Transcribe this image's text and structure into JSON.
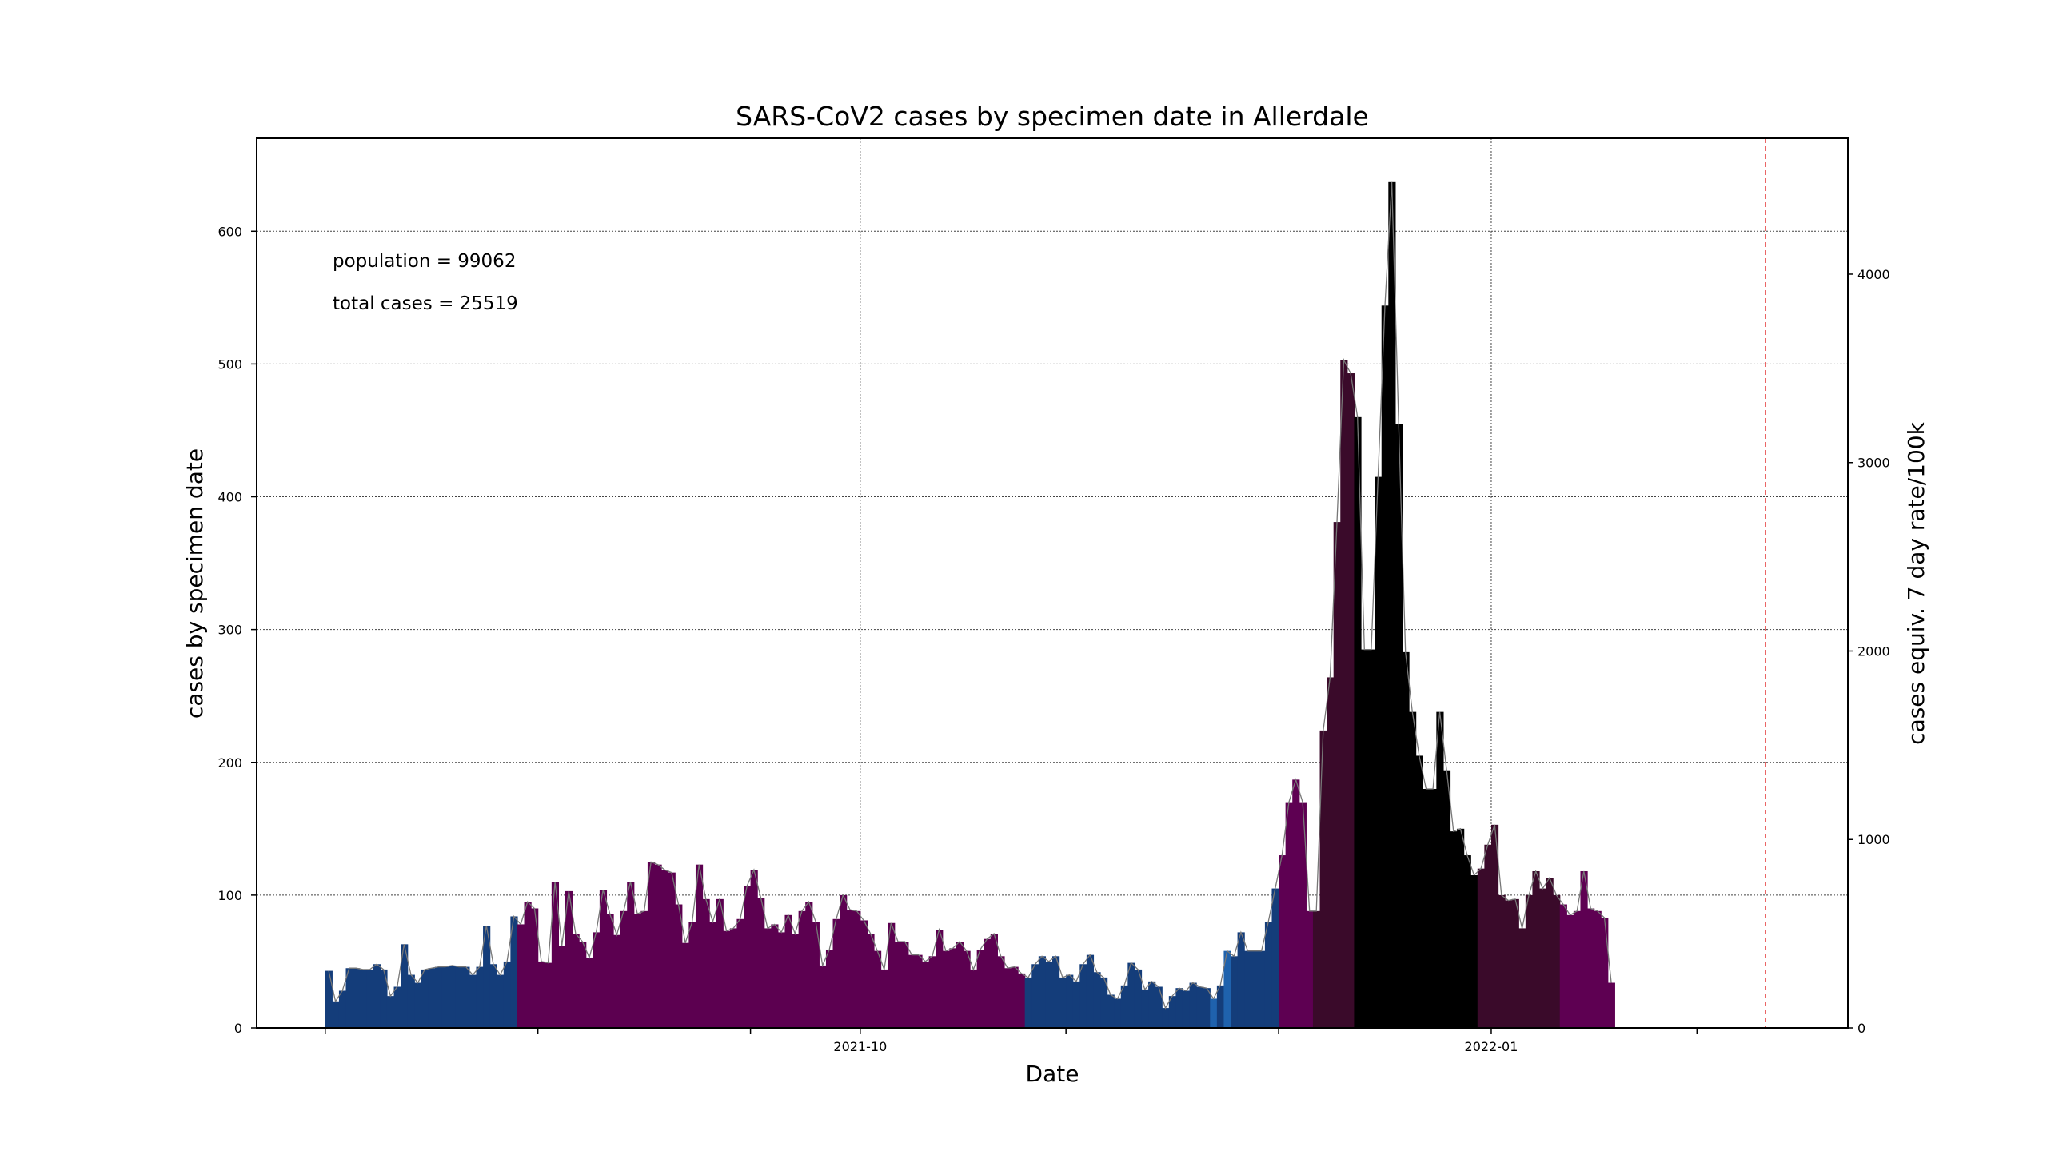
{
  "chart_data": {
    "type": "bar",
    "title": "SARS-CoV2 cases by specimen date in Allerdale",
    "xlabel": "Date",
    "ylabel": "cases by specimen date",
    "y2label": "cases equiv. 7 day rate/100k",
    "annotations": [
      "population = 99062",
      "total cases = 25519"
    ],
    "x_range": [
      "2021-07-05",
      "2022-02-22"
    ],
    "x_ticks": [
      {
        "date": "2021-07-15",
        "label": ""
      },
      {
        "date": "2021-08-15",
        "label": ""
      },
      {
        "date": "2021-09-15",
        "label": ""
      },
      {
        "date": "2021-10-01",
        "label": "2021-10"
      },
      {
        "date": "2021-10-31",
        "label": ""
      },
      {
        "date": "2021-12-01",
        "label": ""
      },
      {
        "date": "2022-01-01",
        "label": "2022-01"
      },
      {
        "date": "2022-01-31",
        "label": ""
      },
      {
        "date": "2022-02-28",
        "label": ""
      }
    ],
    "ylim": [
      0,
      670
    ],
    "y_ticks": [
      0,
      100,
      200,
      300,
      400,
      500,
      600
    ],
    "y2lim": [
      0,
      4721
    ],
    "y2_ticks": [
      0,
      1000,
      2000,
      3000,
      4000
    ],
    "grid": true,
    "marker_line_date": "2022-02-10",
    "start_date": "2021-07-15",
    "values": [
      43,
      20,
      28,
      45,
      45,
      44,
      44,
      48,
      44,
      24,
      31,
      63,
      40,
      34,
      44,
      45,
      46,
      46,
      47,
      46,
      46,
      40,
      46,
      77,
      48,
      40,
      50,
      84,
      78,
      95,
      90,
      50,
      49,
      110,
      62,
      103,
      71,
      65,
      53,
      72,
      104,
      86,
      70,
      88,
      110,
      86,
      88,
      125,
      123,
      119,
      117,
      93,
      64,
      80,
      123,
      97,
      80,
      97,
      73,
      75,
      82,
      107,
      119,
      98,
      75,
      78,
      72,
      85,
      71,
      88,
      95,
      80,
      47,
      59,
      82,
      100,
      89,
      88,
      81,
      71,
      58,
      44,
      79,
      65,
      65,
      55,
      55,
      50,
      54,
      74,
      58,
      60,
      65,
      58,
      44,
      59,
      67,
      71,
      54,
      45,
      46,
      41,
      38,
      48,
      54,
      50,
      54,
      38,
      40,
      35,
      48,
      55,
      42,
      38,
      25,
      22,
      32,
      49,
      44,
      29,
      35,
      31,
      15,
      24,
      30,
      28,
      34,
      31,
      30,
      22,
      32,
      58,
      54,
      72,
      58,
      58,
      58,
      80,
      105,
      130,
      170,
      187,
      170,
      88,
      88,
      224,
      264,
      381,
      503,
      493,
      460,
      285,
      285,
      415,
      544,
      637,
      455,
      283,
      238,
      205,
      180,
      180,
      238,
      194,
      148,
      150,
      130,
      115,
      120,
      138,
      153,
      100,
      96,
      97,
      75,
      100,
      118,
      105,
      113,
      100,
      93,
      85,
      88,
      118,
      90,
      88,
      83,
      34
    ],
    "bar_colors": [
      "#143d7a",
      "#15457c",
      "#1f62ad",
      "#5c0050",
      "#5e0052",
      "#3a0a2a",
      "#000000",
      "#b07aaa"
    ],
    "bar_color_index": [
      0,
      0,
      0,
      0,
      0,
      0,
      0,
      0,
      0,
      0,
      0,
      0,
      0,
      0,
      0,
      0,
      0,
      0,
      0,
      0,
      0,
      0,
      0,
      0,
      0,
      0,
      0,
      0,
      3,
      3,
      3,
      3,
      3,
      3,
      3,
      3,
      3,
      3,
      3,
      3,
      3,
      3,
      3,
      3,
      3,
      3,
      3,
      3,
      3,
      3,
      3,
      3,
      3,
      3,
      3,
      3,
      3,
      3,
      3,
      3,
      3,
      3,
      3,
      3,
      3,
      3,
      3,
      3,
      3,
      3,
      3,
      3,
      3,
      3,
      3,
      3,
      3,
      3,
      3,
      3,
      3,
      3,
      3,
      3,
      3,
      3,
      3,
      3,
      3,
      3,
      3,
      3,
      3,
      3,
      3,
      3,
      3,
      3,
      3,
      3,
      3,
      3,
      0,
      0,
      0,
      0,
      0,
      0,
      0,
      0,
      0,
      0,
      0,
      0,
      0,
      0,
      0,
      0,
      0,
      0,
      0,
      0,
      0,
      0,
      0,
      0,
      0,
      0,
      0,
      2,
      0,
      2,
      0,
      0,
      0,
      0,
      0,
      0,
      0,
      4,
      4,
      4,
      4,
      4,
      5,
      5,
      5,
      5,
      5,
      5,
      6,
      6,
      6,
      6,
      6,
      6,
      6,
      6,
      6,
      6,
      6,
      6,
      6,
      6,
      6,
      6,
      6,
      6,
      5,
      5,
      5,
      5,
      5,
      5,
      5,
      5,
      5,
      5,
      5,
      5,
      4,
      4,
      4,
      4,
      4,
      4,
      4,
      4,
      4,
      7,
      7,
      7,
      7
    ]
  }
}
